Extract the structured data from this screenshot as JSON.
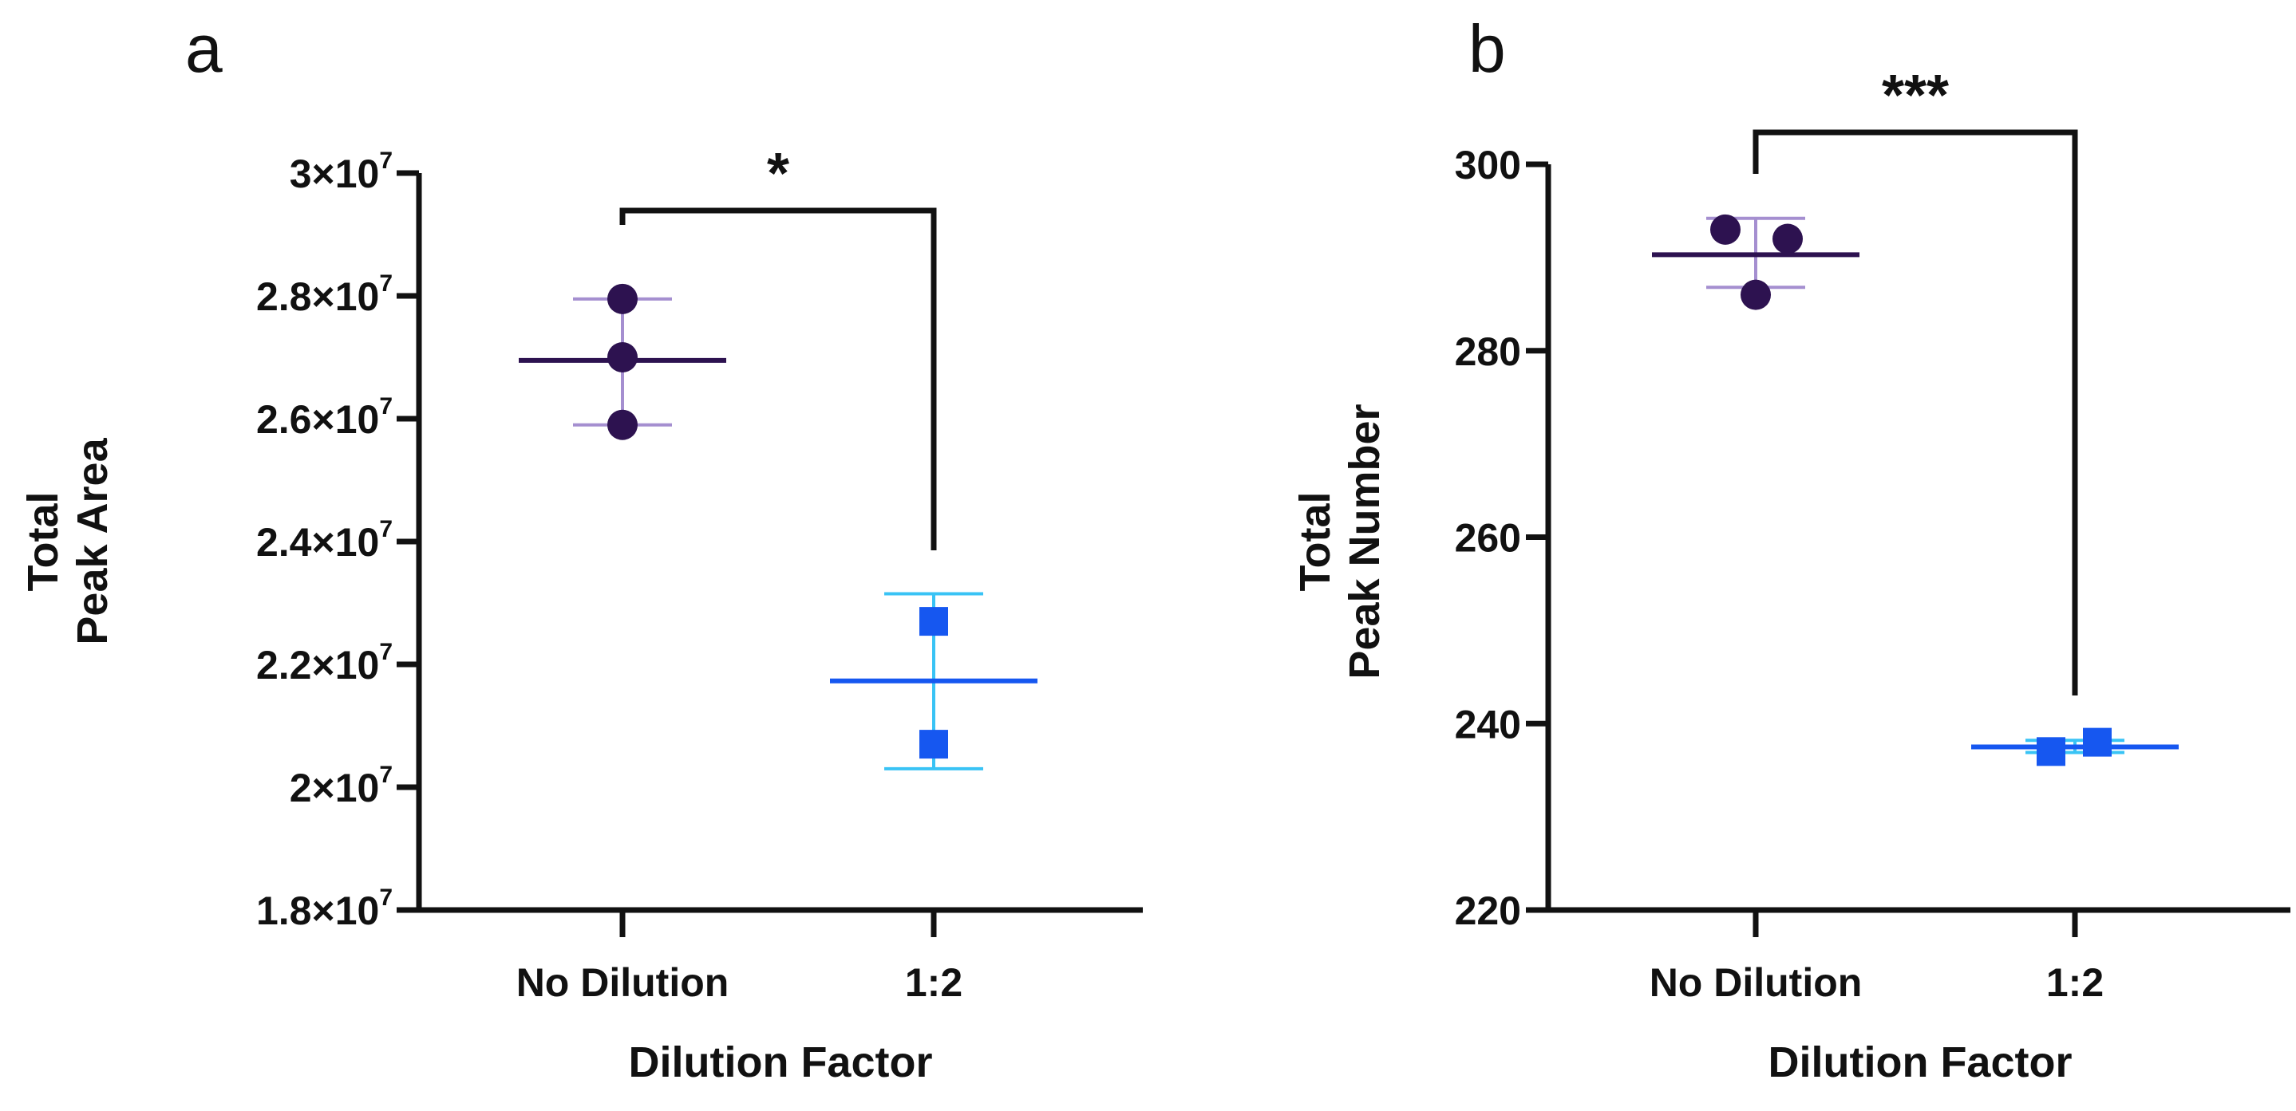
{
  "colors": {
    "no_dilution_marker": "#2d1250",
    "no_dilution_errorbar": "#a58fd0",
    "dilution_marker": "#1657f0",
    "dilution_errorbar": "#39c3f5",
    "axis": "#111111"
  },
  "chart_data": [
    {
      "panel": "a",
      "type": "scatter",
      "title": "",
      "xlabel": "Dilution Factor",
      "ylabel_lines": [
        "Total",
        "Peak Area"
      ],
      "categories": [
        "No Dilution",
        "1:2"
      ],
      "ylim": [
        18000000,
        30000000
      ],
      "yticks": [
        {
          "value": 18000000,
          "mantissa": "1.8×10",
          "exp": "7"
        },
        {
          "value": 20000000,
          "mantissa": "2×10",
          "exp": "7"
        },
        {
          "value": 22000000,
          "mantissa": "2.2×10",
          "exp": "7"
        },
        {
          "value": 24000000,
          "mantissa": "2.4×10",
          "exp": "7"
        },
        {
          "value": 26000000,
          "mantissa": "2.6×10",
          "exp": "7"
        },
        {
          "value": 28000000,
          "mantissa": "2.8×10",
          "exp": "7"
        },
        {
          "value": 30000000,
          "mantissa": "3×10",
          "exp": "7"
        }
      ],
      "series": [
        {
          "name": "No Dilution",
          "marker": "circle",
          "points": [
            27950000,
            27000000,
            25900000
          ],
          "mean": 26950000,
          "sd_low": 25900000,
          "sd_high": 27950000
        },
        {
          "name": "1:2",
          "marker": "square",
          "points": [
            22700000,
            20700000
          ],
          "mean": 21730000,
          "sd_low": 20300000,
          "sd_high": 23150000
        }
      ],
      "significance": {
        "label": "*",
        "from": 0,
        "to": 1
      }
    },
    {
      "panel": "b",
      "type": "scatter",
      "title": "",
      "xlabel": "Dilution Factor",
      "ylabel_lines": [
        "Total",
        "Peak Number"
      ],
      "categories": [
        "No Dilution",
        "1:2"
      ],
      "ylim": [
        220,
        300
      ],
      "yticks": [
        {
          "value": 220,
          "mantissa": "220",
          "exp": ""
        },
        {
          "value": 240,
          "mantissa": "240",
          "exp": ""
        },
        {
          "value": 260,
          "mantissa": "260",
          "exp": ""
        },
        {
          "value": 280,
          "mantissa": "280",
          "exp": ""
        },
        {
          "value": 300,
          "mantissa": "300",
          "exp": ""
        }
      ],
      "series": [
        {
          "name": "No Dilution",
          "marker": "circle",
          "points": [
            293,
            292,
            286
          ],
          "mean": 290.3,
          "sd_low": 286.8,
          "sd_high": 294.2
        },
        {
          "name": "1:2",
          "marker": "square",
          "points": [
            237,
            238
          ],
          "mean": 237.5,
          "sd_low": 236.9,
          "sd_high": 238.2
        }
      ],
      "significance": {
        "label": "***",
        "from": 0,
        "to": 1
      }
    }
  ]
}
